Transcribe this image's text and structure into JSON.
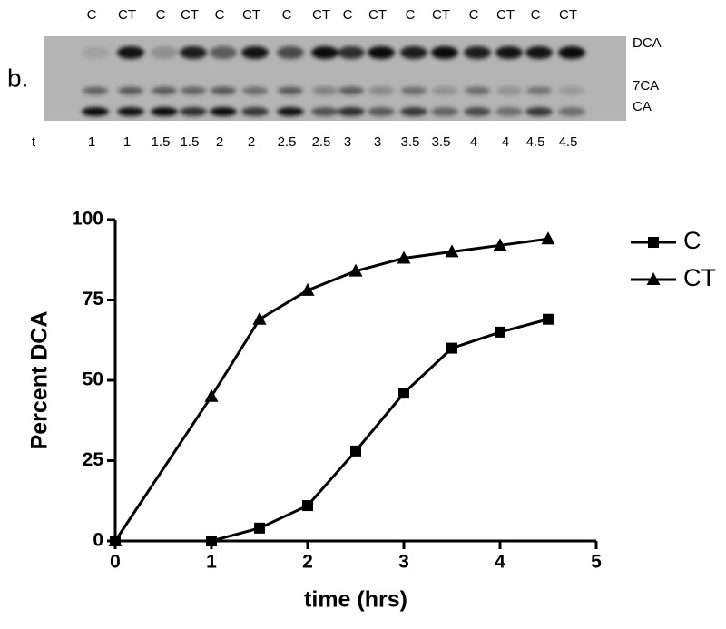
{
  "panel_label": "b.",
  "gel": {
    "lane_headers": [
      "C",
      "CT",
      "C",
      "CT",
      "C",
      "CT",
      "C",
      "CT",
      "C",
      "CT",
      "C",
      "CT",
      "C",
      "CT",
      "C",
      "CT"
    ],
    "row_label": "t",
    "lane_times": [
      "1",
      "1",
      "1.5",
      "1.5",
      "2",
      "2",
      "2.5",
      "2.5",
      "3",
      "3",
      "3.5",
      "3.5",
      "4",
      "4",
      "4.5",
      "4.5"
    ],
    "band_labels": [
      "DCA",
      "7CA",
      "CA"
    ]
  },
  "chart_data": {
    "type": "line",
    "xlabel": "time (hrs)",
    "ylabel": "Percent DCA",
    "x": [
      0,
      1,
      1.5,
      2,
      2.5,
      3,
      3.5,
      4,
      4.5
    ],
    "series": [
      {
        "name": "C",
        "color": "#000000",
        "marker": "square",
        "values": [
          0,
          0,
          4,
          11,
          28,
          46,
          60,
          65,
          69
        ]
      },
      {
        "name": "CT",
        "color": "#000000",
        "marker": "triangle",
        "values": [
          0,
          45,
          69,
          78,
          84,
          88,
          90,
          92,
          94
        ]
      }
    ],
    "xlim": [
      0,
      5
    ],
    "ylim": [
      0,
      100
    ],
    "xticks": [
      0,
      1,
      2,
      3,
      4,
      5
    ],
    "yticks": [
      0,
      25,
      50,
      75,
      100
    ],
    "legend": "right"
  }
}
